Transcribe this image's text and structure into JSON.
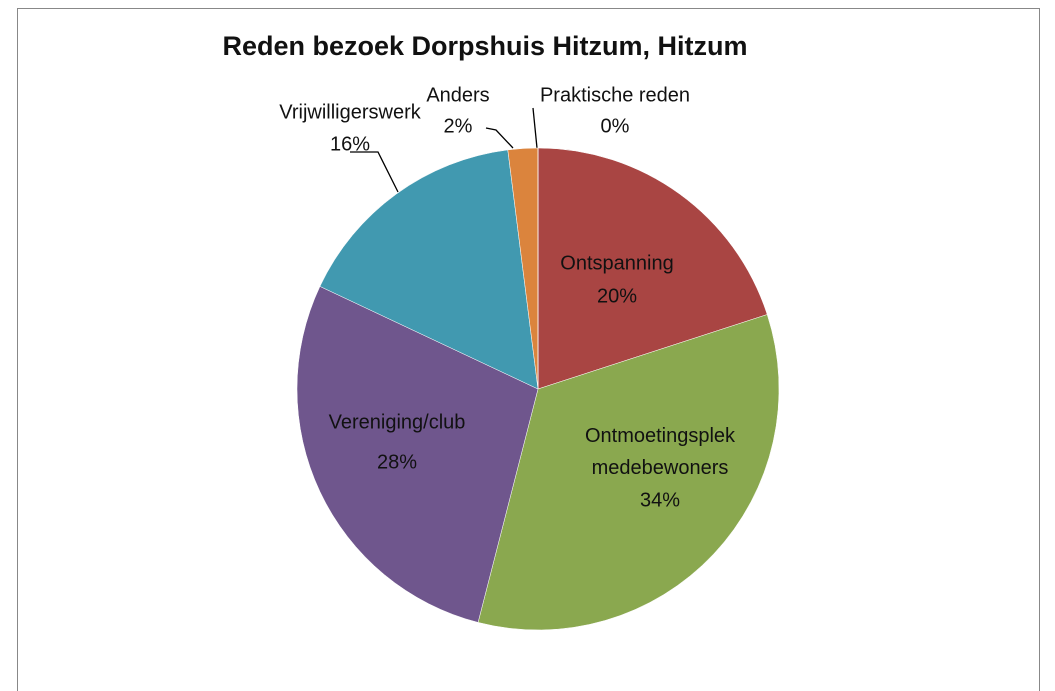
{
  "chart_data": {
    "type": "pie",
    "title": "Reden bezoek Dorpshuis Hitzum, Hitzum",
    "categories": [
      "Ontspanning",
      "Ontmoetingsplek medebewoners",
      "Vereniging/club",
      "Vrijwilligerswerk",
      "Anders",
      "Praktische reden"
    ],
    "values": [
      20,
      34,
      28,
      16,
      2,
      0
    ],
    "value_labels": [
      "20%",
      "34%",
      "28%",
      "16%",
      "2%",
      "0%"
    ],
    "colors": [
      "#a94543",
      "#8aa84f",
      "#6f568d",
      "#4199b0",
      "#db843d",
      "#4472c4"
    ]
  }
}
